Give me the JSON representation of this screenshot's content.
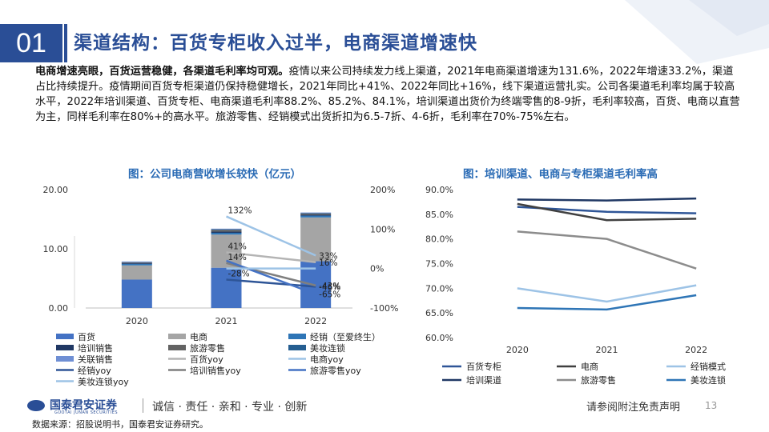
{
  "header": {
    "number": "01",
    "title": "渠道结构：百货专柜收入过半，电商渠道增速快"
  },
  "body": {
    "lead": "电商增速亮眼，百货运营稳健，各渠道毛利率均可观。",
    "text": "疫情以来公司持续发力线上渠道，2021年电商渠道增速为131.6%，2022年增速33.2%，渠道占比持续提升。疫情期间百货专柜渠道仍保持稳健增长，2021年同比+41%、2022年同比+16%，线下渠道运营扎实。公司各渠道毛利率均属于较高水平，2022年培训渠道、百货专柜、电商渠道毛利率88.2%、85.2%、84.1%，培训渠道出货价为终端零售的8-9折，毛利率较高，百货、电商以直营为主，同样毛利率在80%+的高水平。旅游零售、经销模式出货折扣为6.5-7折、4-6折，毛利率在70%-75%左右。"
  },
  "chart_data": [
    {
      "type": "bar",
      "title": "图：公司电商营收增长较快（亿元）",
      "categories": [
        "2020",
        "2021",
        "2022"
      ],
      "stacked": true,
      "ylim": [
        0,
        20
      ],
      "y_ticks": [
        "0.00",
        "10.00",
        "20.00"
      ],
      "y2lim": [
        -100,
        200
      ],
      "y2_ticks": [
        "-100%",
        "0%",
        "100%",
        "200%"
      ],
      "series": [
        {
          "name": "百货",
          "color": "#4472c4",
          "values": [
            4.8,
            6.8,
            7.9
          ]
        },
        {
          "name": "电商",
          "color": "#a5a5a5",
          "values": [
            2.4,
            5.6,
            7.4
          ]
        },
        {
          "name": "经销（至爱终生）",
          "color": "#2e75b6",
          "values": [
            0.25,
            0.3,
            0.3
          ]
        },
        {
          "name": "培训销售",
          "color": "#203864",
          "values": [
            0.15,
            0.2,
            0.15
          ]
        },
        {
          "name": "旅游零售",
          "color": "#636363",
          "values": [
            0.1,
            0.3,
            0.2
          ]
        },
        {
          "name": "美妆连锁",
          "color": "#255e91",
          "values": [
            0.05,
            0.1,
            0.08
          ]
        },
        {
          "name": "关联销售",
          "color": "#6f8fd4",
          "values": [
            0.1,
            0.1,
            0.1
          ]
        }
      ],
      "yoy_series": [
        {
          "name": "百货yoy",
          "color": "#b4b4b4",
          "points": [
            [
              2021,
              41
            ],
            [
              2022,
              16
            ]
          ],
          "labels": [
            "41%",
            "16%"
          ]
        },
        {
          "name": "电商yoy",
          "color": "#9dc3e6",
          "points": [
            [
              2021,
              132
            ],
            [
              2022,
              33
            ]
          ],
          "labels": [
            "132%",
            "33%"
          ]
        },
        {
          "name": "经销yoy",
          "color": "#2e5597",
          "points": [
            [
              2021,
              -28
            ],
            [
              2022,
              -46
            ]
          ],
          "labels": [
            "-28%",
            "-46%"
          ]
        },
        {
          "name": "培训销售yoy",
          "color": "#7f7f7f",
          "points": [
            [
              2021,
              14
            ],
            [
              2022,
              -43
            ]
          ],
          "labels": [
            "14%",
            "-43%"
          ]
        },
        {
          "name": "旅游零售yoy",
          "color": "#4472c4",
          "points": [
            [
              2021,
              20
            ],
            [
              2022,
              -65
            ]
          ],
          "labels": [
            "",
            "-65%"
          ]
        },
        {
          "name": "美妆连锁yoy",
          "color": "#9dc3e6",
          "points": [
            [
              2021,
              0
            ],
            [
              2022,
              0
            ]
          ],
          "labels": [
            "",
            ""
          ]
        }
      ],
      "legend": [
        [
          "百货",
          "电商",
          "经销（至爱终生）"
        ],
        [
          "培训销售",
          "旅游零售",
          "美妆连锁"
        ],
        [
          "关联销售",
          "百货yoy",
          "电商yoy"
        ],
        [
          "经销yoy",
          "培训销售yoy",
          "旅游零售yoy"
        ],
        [
          "美妆连锁yoy"
        ]
      ]
    },
    {
      "type": "line",
      "title": "图：培训渠道、电商与专柜渠道毛利率高",
      "categories": [
        "2020",
        "2021",
        "2022"
      ],
      "ylim": [
        60,
        90
      ],
      "y_ticks": [
        "60.0%",
        "65.0%",
        "70.0%",
        "75.0%",
        "80.0%",
        "85.0%",
        "90.0%"
      ],
      "series": [
        {
          "name": "百货专柜",
          "color": "#2e5597",
          "values": [
            86.5,
            85.5,
            85.2
          ]
        },
        {
          "name": "电商",
          "color": "#404040",
          "values": [
            87.1,
            83.8,
            84.1
          ]
        },
        {
          "name": "经销模式",
          "color": "#9dc3e6",
          "values": [
            70.0,
            67.3,
            70.6
          ]
        },
        {
          "name": "培训渠道",
          "color": "#203864",
          "values": [
            88.0,
            87.8,
            88.2
          ]
        },
        {
          "name": "旅游零售",
          "color": "#8c8c8c",
          "values": [
            81.5,
            80.0,
            74.0
          ]
        },
        {
          "name": "美妆连锁",
          "color": "#2e75b6",
          "values": [
            66.0,
            65.7,
            68.6
          ]
        }
      ],
      "legend": [
        [
          "百货专柜",
          "电商",
          "经销模式"
        ],
        [
          "培训渠道",
          "旅游零售",
          "美妆连锁"
        ]
      ]
    }
  ],
  "footer": {
    "logo": "国泰君安证券",
    "logo_sub": "GUOTAI JUNAN SECURITIES",
    "slogan": "诚信 · 责任 · 亲和 · 专业 · 创新",
    "disclaimer": "请参阅附注免责声明",
    "page": "13",
    "source": "数据来源：招股说明书，国泰君安证券研究。"
  }
}
